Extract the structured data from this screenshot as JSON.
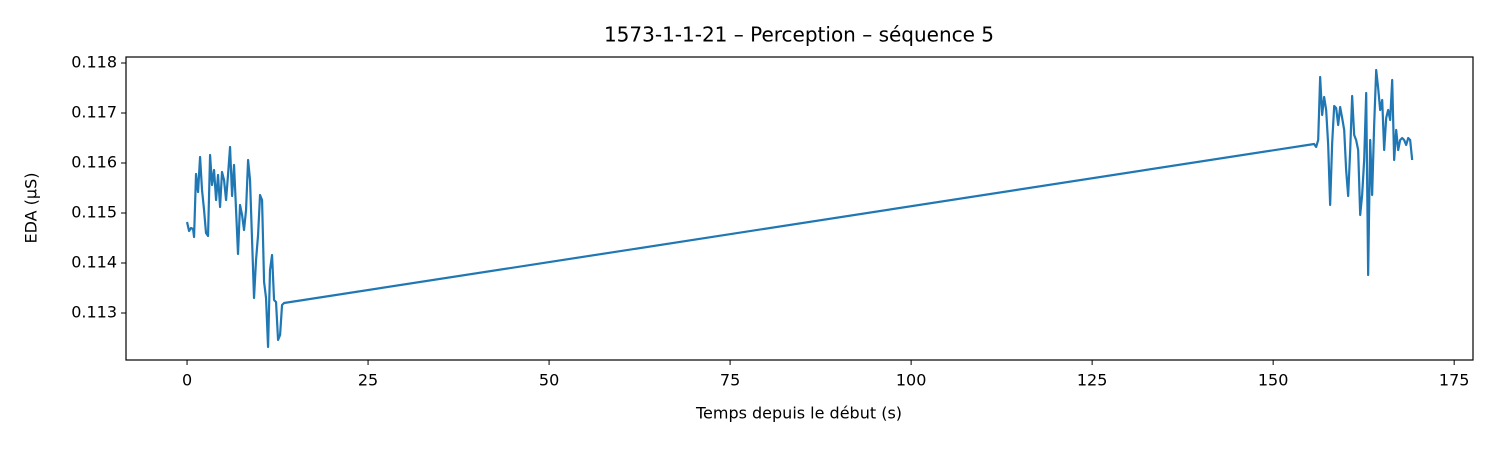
{
  "chart_data": {
    "type": "line",
    "title": "1573-1-1-21 – Perception – séquence 5",
    "x_label": "Temps depuis le début (s)",
    "y_label": "EDA (µS)",
    "x": [
      0,
      0.28,
      0.55,
      0.83,
      0.97,
      1.24,
      1.52,
      1.8,
      2.07,
      2.35,
      2.62,
      2.9,
      3.18,
      3.45,
      3.73,
      4.01,
      4.28,
      4.56,
      4.83,
      5.11,
      5.39,
      5.66,
      5.94,
      6.22,
      6.49,
      6.77,
      7.04,
      7.32,
      7.6,
      7.87,
      8.15,
      8.43,
      8.7,
      8.98,
      9.25,
      9.53,
      9.81,
      10.08,
      10.36,
      10.64,
      10.91,
      11.19,
      11.46,
      11.74,
      12.02,
      12.29,
      12.57,
      12.85,
      13.12,
      13.4,
      155.66,
      155.94,
      156.22,
      156.49,
      156.77,
      157.04,
      157.32,
      157.6,
      157.87,
      158.15,
      158.43,
      158.7,
      158.98,
      159.25,
      159.53,
      159.81,
      160.08,
      160.36,
      160.64,
      160.91,
      161.19,
      161.46,
      161.74,
      162.02,
      162.29,
      162.57,
      162.85,
      163.12,
      163.4,
      163.67,
      163.95,
      164.23,
      164.5,
      164.78,
      165.06,
      165.33,
      165.61,
      165.88,
      166.16,
      166.44,
      166.71,
      166.99,
      167.27,
      167.54,
      167.82,
      168.09,
      168.37,
      168.65,
      168.92,
      169.2
    ],
    "series": [
      {
        "color": "#1f77b4",
        "values": [
          0.11482,
          0.11464,
          0.1147,
          0.11468,
          0.11452,
          0.11578,
          0.11542,
          0.11612,
          0.11546,
          0.11506,
          0.1146,
          0.11454,
          0.11616,
          0.11556,
          0.11586,
          0.11526,
          0.11576,
          0.11512,
          0.11582,
          0.11566,
          0.11526,
          0.11576,
          0.11632,
          0.11534,
          0.11596,
          0.11506,
          0.11418,
          0.11516,
          0.11496,
          0.11466,
          0.11506,
          0.11606,
          0.11566,
          0.11446,
          0.1133,
          0.11406,
          0.11456,
          0.11536,
          0.11526,
          0.11362,
          0.1133,
          0.11232,
          0.11386,
          0.11416,
          0.11326,
          0.11322,
          0.11246,
          0.11256,
          0.11316,
          0.1132,
          0.11638,
          0.11632,
          0.11646,
          0.11772,
          0.11696,
          0.11732,
          0.11706,
          0.11636,
          0.11516,
          0.1164,
          0.11714,
          0.1171,
          0.11676,
          0.11712,
          0.1169,
          0.11666,
          0.11586,
          0.11534,
          0.11626,
          0.11734,
          0.11656,
          0.11646,
          0.11626,
          0.11496,
          0.11536,
          0.11606,
          0.1174,
          0.11376,
          0.11646,
          0.11536,
          0.11676,
          0.11786,
          0.1175,
          0.11706,
          0.11726,
          0.11626,
          0.1169,
          0.11706,
          0.11686,
          0.11766,
          0.11606,
          0.11666,
          0.11626,
          0.11646,
          0.1165,
          0.11646,
          0.11636,
          0.1165,
          0.11646,
          0.11606
        ]
      }
    ],
    "xlim": [
      -8.43,
      177.6
    ],
    "xticks": [
      0,
      25,
      50,
      75,
      100,
      125,
      150,
      175
    ],
    "ylim": [
      0.11206,
      0.11812
    ],
    "yticks": [
      0.113,
      0.114,
      0.115,
      0.116,
      0.117,
      0.118
    ],
    "grid": false
  }
}
